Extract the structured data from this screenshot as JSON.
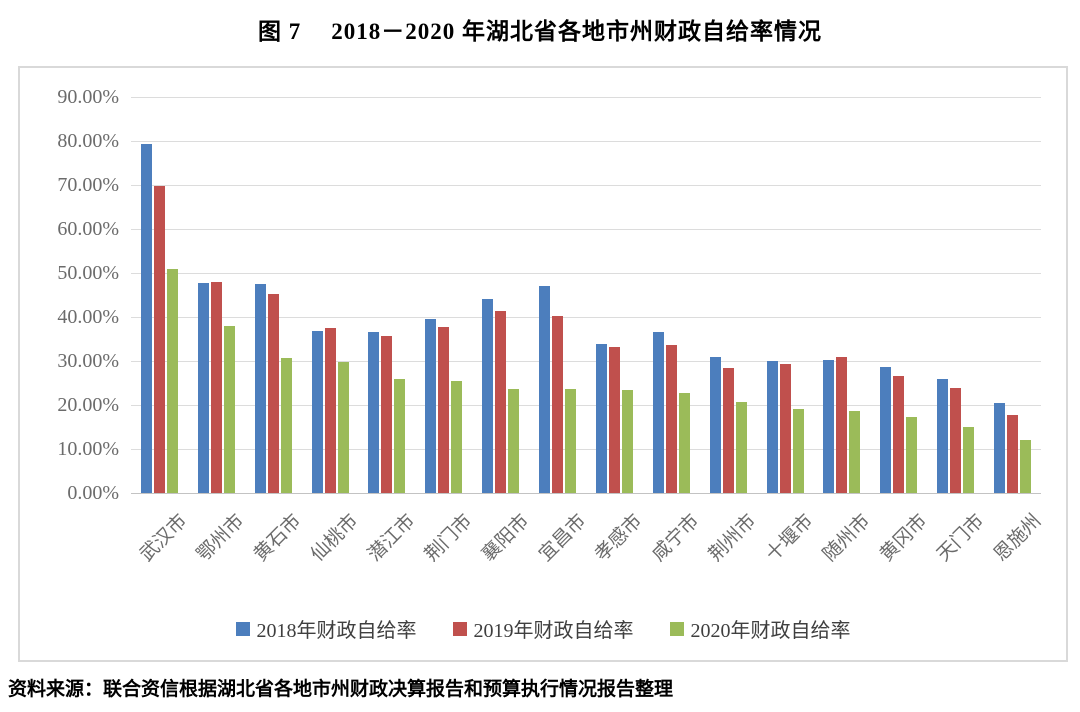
{
  "figure": {
    "label": "图 7",
    "title": "2018－2020 年湖北省各地市州财政自给率情况"
  },
  "source_note": "资料来源：联合资信根据湖北省各地市州财政决算报告和预算执行情况报告整理",
  "chart_data": {
    "type": "bar",
    "title": "图 7 2018－2020 年湖北省各地市州财政自给率情况",
    "categories": [
      "武汉市",
      "鄂州市",
      "黄石市",
      "仙桃市",
      "潜江市",
      "荆门市",
      "襄阳市",
      "宜昌市",
      "孝感市",
      "咸宁市",
      "荆州市",
      "十堰市",
      "随州市",
      "黄冈市",
      "天门市",
      "恩施州"
    ],
    "series": [
      {
        "name": "2018年财政自给率",
        "color": "#4C7EBD",
        "values": [
          79.4,
          47.7,
          47.4,
          36.8,
          36.6,
          39.5,
          44.0,
          47.0,
          33.9,
          36.6,
          31.0,
          29.9,
          30.3,
          28.7,
          25.8,
          20.4
        ]
      },
      {
        "name": "2019年财政自给率",
        "color": "#C0504D",
        "values": [
          69.8,
          48.0,
          45.2,
          37.4,
          35.6,
          37.7,
          41.4,
          40.3,
          33.2,
          33.7,
          28.4,
          29.3,
          31.0,
          26.5,
          23.9,
          17.8
        ]
      },
      {
        "name": "2020年财政自给率",
        "color": "#9BBB59",
        "values": [
          50.9,
          37.9,
          30.7,
          29.8,
          26.0,
          25.4,
          23.7,
          23.7,
          23.4,
          22.7,
          20.7,
          19.2,
          18.7,
          17.2,
          14.9,
          12.0
        ]
      }
    ],
    "unit": "%",
    "ylim": [
      0,
      90
    ],
    "ytick_step": 10,
    "ytick_labels": [
      "90.00%",
      "80.00%",
      "70.00%",
      "60.00%",
      "50.00%",
      "40.00%",
      "30.00%",
      "20.00%",
      "10.00%",
      "0.00%"
    ],
    "grid": true,
    "legend_position": "bottom",
    "colors": {
      "gridline": "#dcdcdc",
      "axis_line": "#c3c3c3",
      "frame_border": "#d9d9d9",
      "tick_text": "#6b6b6b",
      "legend_text": "#3f3f3f"
    }
  }
}
